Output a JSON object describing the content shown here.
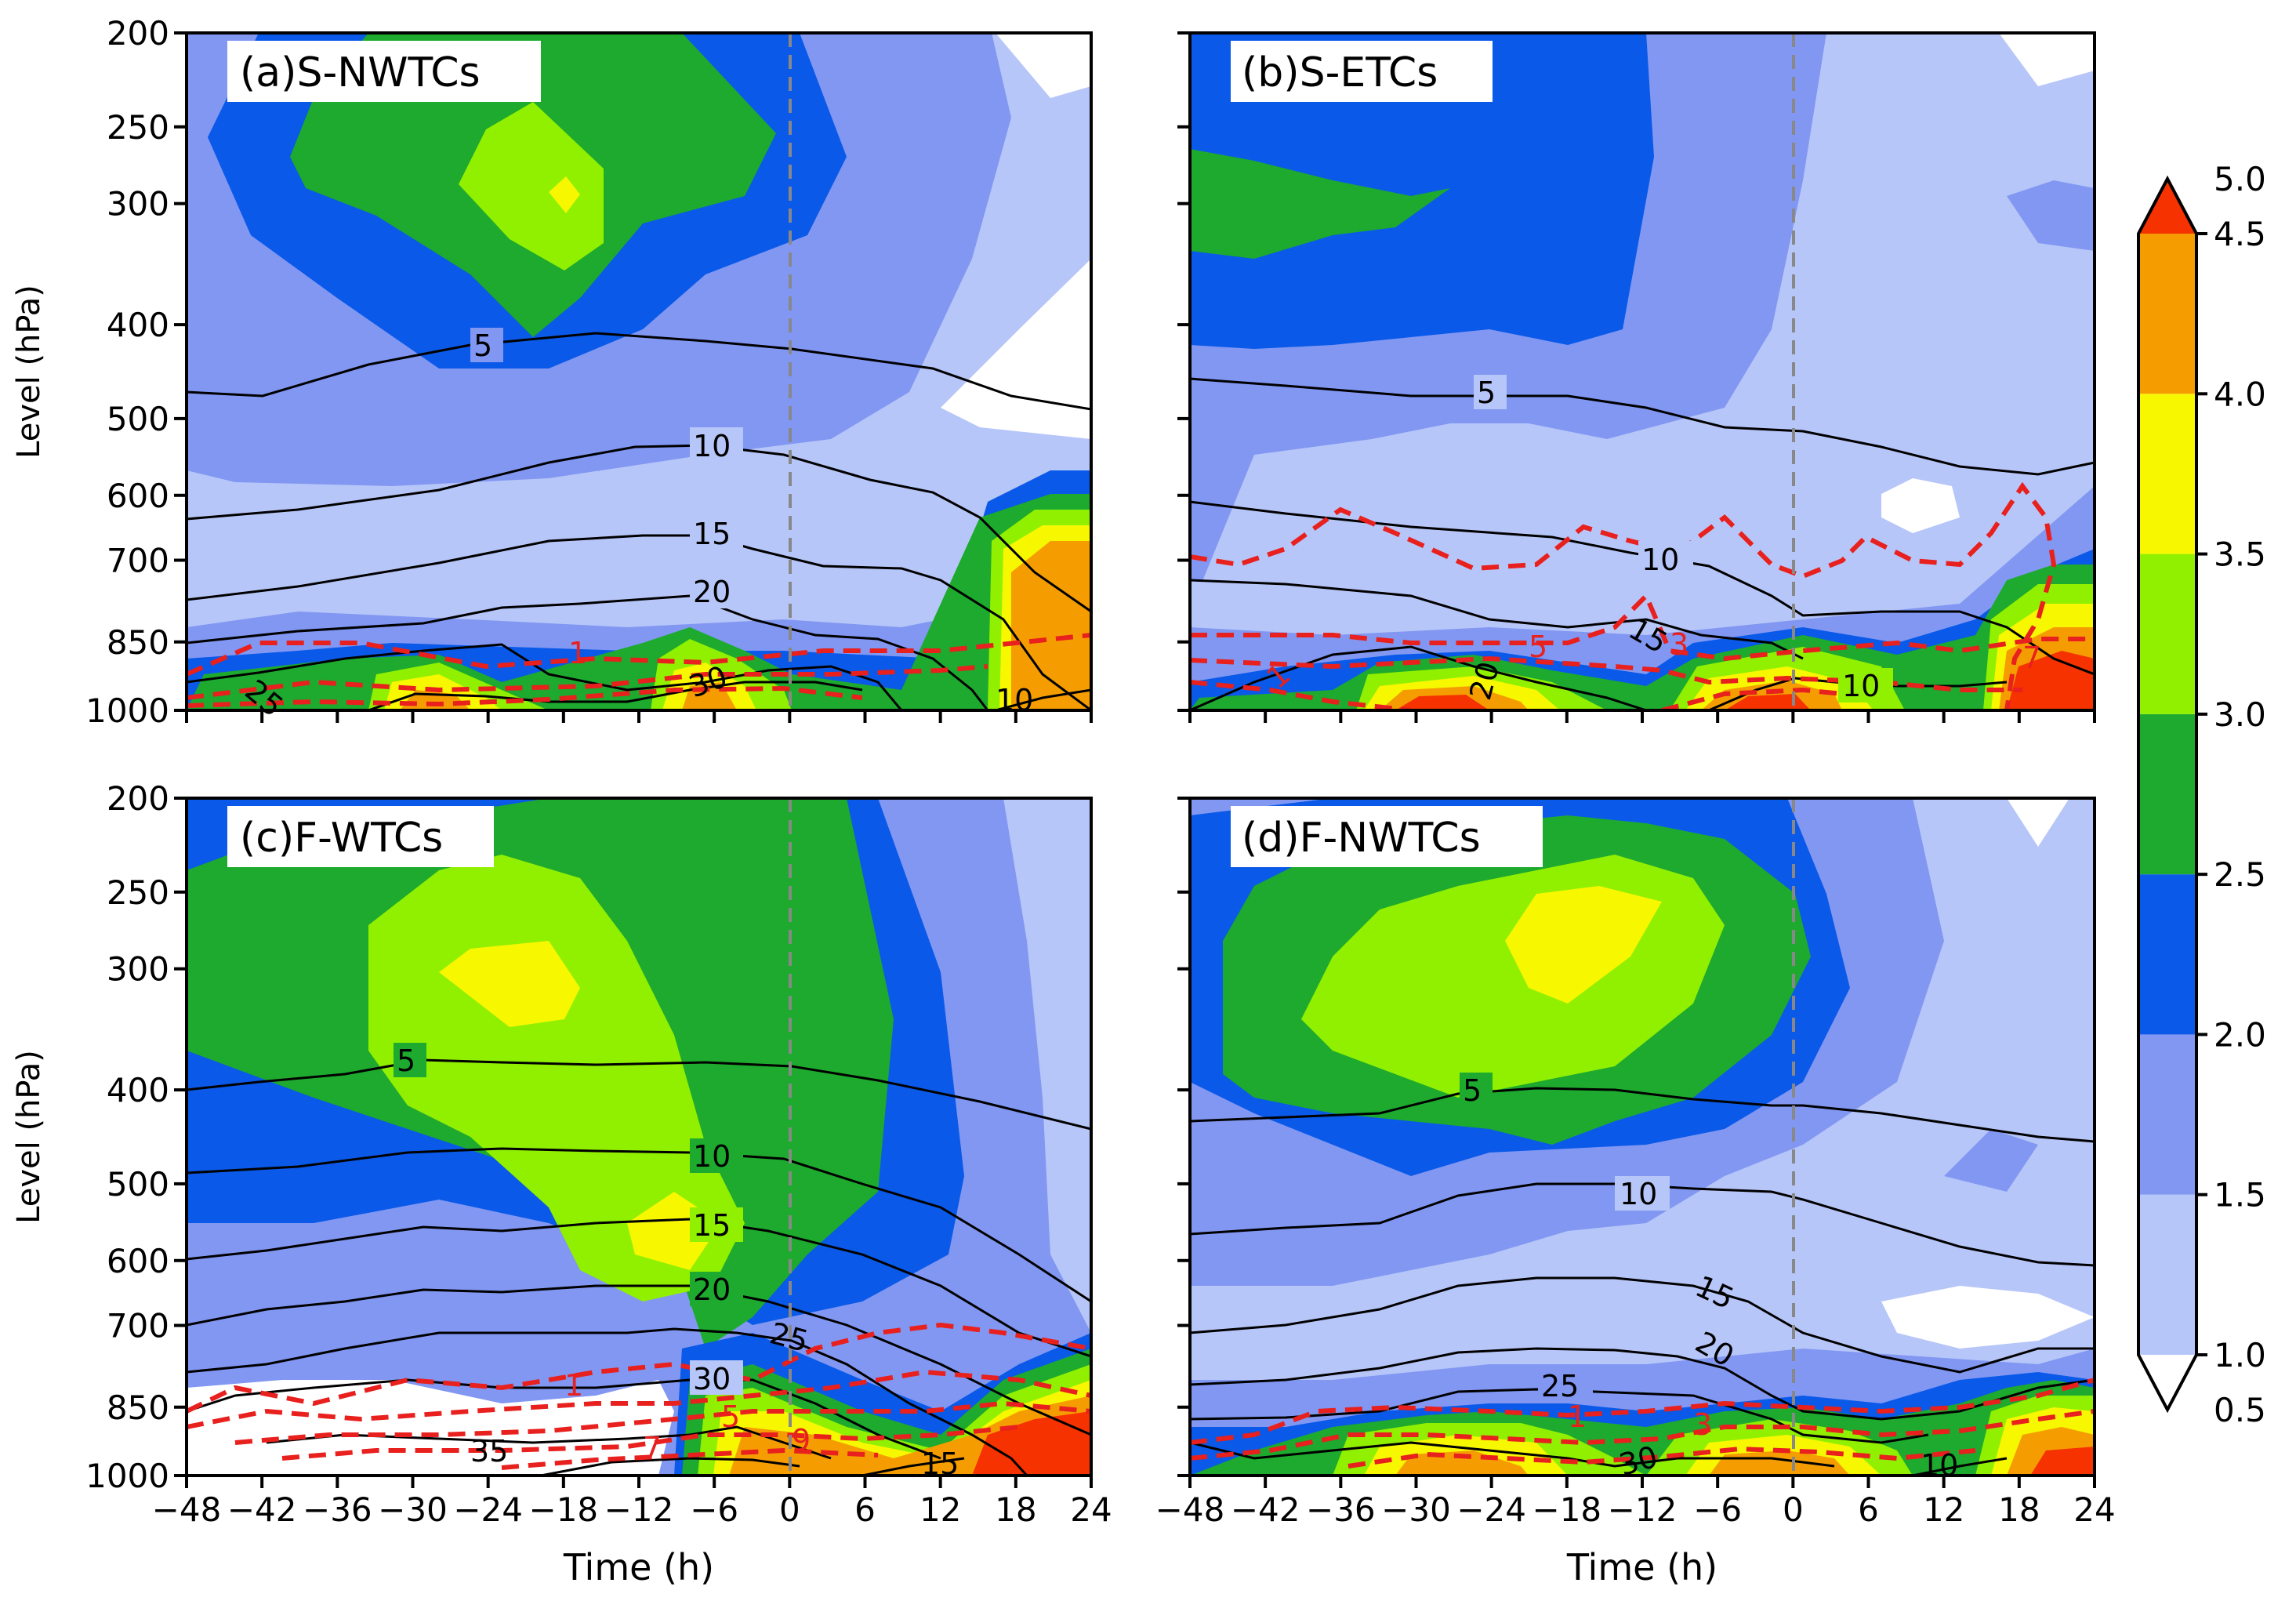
{
  "chart_data": [
    {
      "type": "heatmap",
      "title": "(a)S-NWTCs",
      "xlabel": "",
      "ylabel": "Level (hPa)",
      "xlim": [
        -48,
        24
      ],
      "ylim": [
        1000,
        200
      ],
      "x_ticks": [
        "-48",
        "-42",
        "-36",
        "-30",
        "-24",
        "-18",
        "-12",
        "-6",
        "0",
        "6",
        "12",
        "18",
        "24"
      ],
      "y_ticks": [
        "200",
        "250",
        "300",
        "400",
        "500",
        "600",
        "700",
        "850",
        "1000"
      ],
      "vertical_reference_line": 0,
      "black_contour_labels": [
        "5",
        "10",
        "15",
        "20",
        "25",
        "30",
        "10"
      ],
      "red_dashed_contour_labels": [
        "1"
      ],
      "shading_feature": "max 3.5-4.0 near 300 hPa at -18 h; 4.0-5.0 below 600 hPa at 18-24 h"
    },
    {
      "type": "heatmap",
      "title": "(b)S-ETCs",
      "xlabel": "",
      "ylabel": "",
      "xlim": [
        -48,
        24
      ],
      "ylim": [
        1000,
        200
      ],
      "x_ticks": [
        "-48",
        "-42",
        "-36",
        "-30",
        "-24",
        "-18",
        "-12",
        "-6",
        "0",
        "6",
        "12",
        "18",
        "24"
      ],
      "y_ticks": [
        "200",
        "250",
        "300",
        "400",
        "500",
        "600",
        "700",
        "850",
        "1000"
      ],
      "vertical_reference_line": 0,
      "black_contour_labels": [
        "5",
        "10",
        "15",
        "20",
        "10"
      ],
      "red_dashed_contour_labels": [
        "1",
        "3",
        "5",
        "7"
      ],
      "shading_feature": "2.5-3.0 upper level at -48 h; 4.0-5.0 near surface at -30 h, 0 h and 18-24 h"
    },
    {
      "type": "heatmap",
      "title": "(c)F-WTCs",
      "xlabel": "Time (h)",
      "ylabel": "Level (hPa)",
      "xlim": [
        -48,
        24
      ],
      "ylim": [
        1000,
        200
      ],
      "x_ticks": [
        "-48",
        "-42",
        "-36",
        "-30",
        "-24",
        "-18",
        "-12",
        "-6",
        "0",
        "6",
        "12",
        "18",
        "24"
      ],
      "y_ticks": [
        "200",
        "250",
        "300",
        "400",
        "500",
        "600",
        "700",
        "850",
        "1000"
      ],
      "vertical_reference_line": 0,
      "black_contour_labels": [
        "5",
        "10",
        "15",
        "20",
        "25",
        "30",
        "35",
        "15"
      ],
      "red_dashed_contour_labels": [
        "1",
        "5",
        "7",
        "9"
      ],
      "shading_feature": "3.5-4.0 near 300 hPa at -24 h and 600 hPa at -6 h; 4.0-5.0 near surface at 18-24 h"
    },
    {
      "type": "heatmap",
      "title": "(d)F-NWTCs",
      "xlabel": "Time (h)",
      "ylabel": "",
      "xlim": [
        -48,
        24
      ],
      "ylim": [
        1000,
        200
      ],
      "x_ticks": [
        "-48",
        "-42",
        "-36",
        "-30",
        "-24",
        "-18",
        "-12",
        "-6",
        "0",
        "6",
        "12",
        "18",
        "24"
      ],
      "y_ticks": [
        "200",
        "250",
        "300",
        "400",
        "500",
        "600",
        "700",
        "850",
        "1000"
      ],
      "vertical_reference_line": 0,
      "black_contour_labels": [
        "5",
        "10",
        "15",
        "20",
        "25",
        "30",
        "10"
      ],
      "red_dashed_contour_labels": [
        "1",
        "3"
      ],
      "shading_feature": "3.5-4.0 near 280 hPa at -18 h; 4.0-5.0 near surface at 18-24 h"
    }
  ],
  "colorbar": {
    "levels": [
      "0.5",
      "1.0",
      "1.5",
      "2.0",
      "2.5",
      "3.0",
      "3.5",
      "4.0",
      "4.5",
      "5.0"
    ],
    "colors": [
      "#ffffff",
      "#b7c6f8",
      "#8197f2",
      "#0a59e8",
      "#1daa2e",
      "#90f000",
      "#f7f700",
      "#f59d00",
      "#f53200"
    ],
    "extend": "both"
  },
  "colors": {
    "level1": "#b7c6f8",
    "level2": "#8197f2",
    "level3": "#0a59e8",
    "level4": "#1daa2e",
    "level5": "#90f000",
    "level6": "#f7f700",
    "level7": "#f59d00",
    "level8": "#f53200",
    "contour_black": "#000000",
    "contour_red": "#e8201e",
    "zero_line": "#888888"
  }
}
